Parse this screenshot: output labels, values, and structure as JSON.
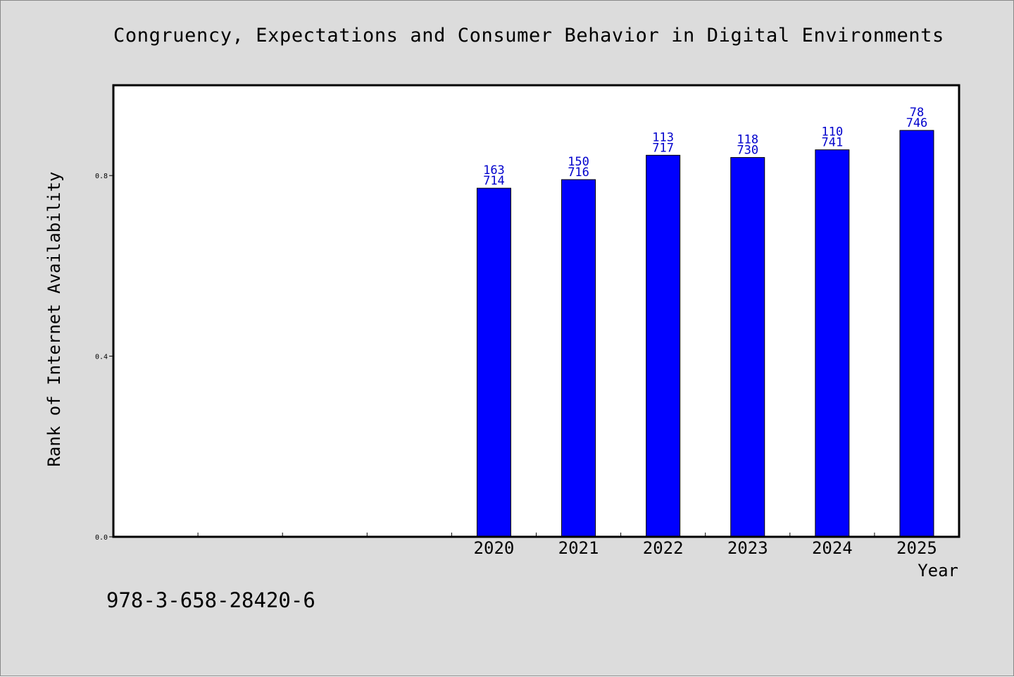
{
  "title": "Congruency, Expectations and Consumer Behavior in Digital Environments",
  "footer_text": "978-3-658-28420-6",
  "colors": {
    "background": "#dcdcdc",
    "plot_background": "#ffffff",
    "bar_fill": "#0000ff",
    "value_label": "#0000cc",
    "axis": "#000000"
  },
  "chart_data": {
    "type": "bar",
    "title": "Congruency, Expectations and Consumer Behavior in Digital Environments",
    "xlabel": "Year",
    "ylabel": "Rank of Internet Availability",
    "categories": [
      "",
      "",
      "",
      "",
      "2020",
      "2021",
      "2022",
      "2023",
      "2024",
      "2025"
    ],
    "values": [
      null,
      null,
      null,
      null,
      0.772,
      0.791,
      0.845,
      0.84,
      0.857,
      0.9
    ],
    "bar_labels": [
      null,
      null,
      null,
      null,
      [
        "163",
        "714"
      ],
      [
        "150",
        "716"
      ],
      [
        "113",
        "717"
      ],
      [
        "118",
        "730"
      ],
      [
        "110",
        "741"
      ],
      [
        "78",
        "746"
      ]
    ],
    "ylim": [
      0,
      1.0
    ],
    "yticks": [
      0.0,
      0.4,
      0.8
    ],
    "ytick_labels": [
      "0.0",
      "0.4",
      "0.8"
    ],
    "grid": false,
    "legend": "none"
  }
}
